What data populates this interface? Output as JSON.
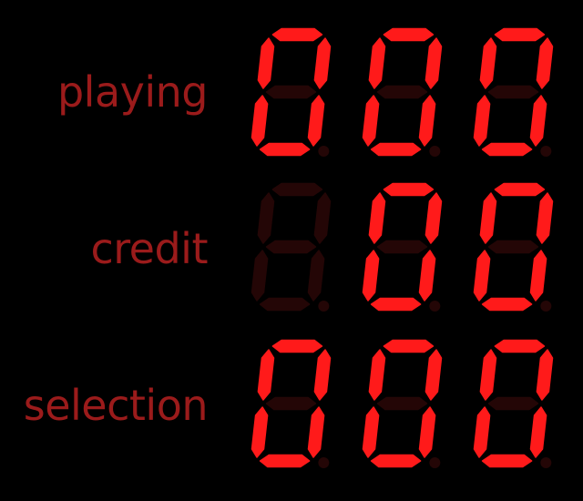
{
  "colors": {
    "segment_on": "#ff1a1a",
    "segment_off": "#240606",
    "label": "#9b1b1b",
    "background": "#000000"
  },
  "counters": [
    {
      "id": "playing",
      "label": "playing",
      "digits": [
        "0",
        "0",
        "0"
      ]
    },
    {
      "id": "credit",
      "label": "credit",
      "digits": [
        "blank",
        "0",
        "0"
      ]
    },
    {
      "id": "selection",
      "label": "selection",
      "digits": [
        "0",
        "0",
        "0"
      ]
    }
  ]
}
